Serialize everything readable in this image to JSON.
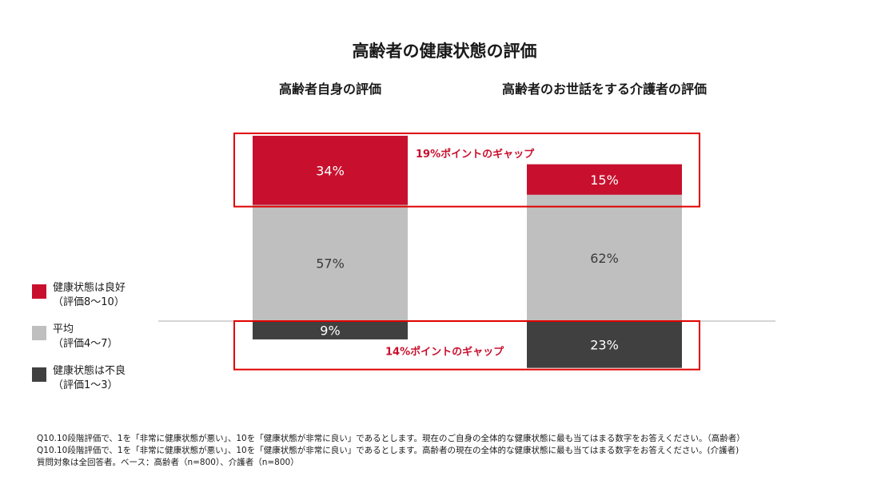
{
  "chart_data": {
    "type": "bar",
    "stacked": true,
    "title": "高齢者の健康状態の評価",
    "categories": [
      "高齢者自身の評価",
      "高齢者のお世話をする介護者の評価"
    ],
    "baseline": "bottom segment hangs below the divider line",
    "series": [
      {
        "name": "健康状態は良好",
        "sublabel": "（評価8～10）",
        "color": "#c8102e",
        "values": [
          34,
          15
        ],
        "labels": [
          "34%",
          "15%"
        ]
      },
      {
        "name": "平均",
        "sublabel": "（評価4～7）",
        "color": "#bfbfbf",
        "values": [
          57,
          62
        ],
        "labels": [
          "57%",
          "62%"
        ]
      },
      {
        "name": "健康状態は不良",
        "sublabel": "（評価1～3）",
        "color": "#404040",
        "values": [
          9,
          23
        ],
        "labels": [
          "9%",
          "23%"
        ]
      }
    ],
    "annotations": [
      {
        "text": "19%ポイントのギャップ",
        "target": "健康状態は良好"
      },
      {
        "text": "14%ポイントのギャップ",
        "target": "健康状態は不良"
      }
    ]
  },
  "notes": [
    "Q10.10段階評価で、1を「非常に健康状態が悪い」、10を「健康状態が非常に良い」であるとします。現在のご自身の全体的な健康状態に最も当てはまる数字をお答えください。（高齢者）",
    "Q10.10段階評価で、1を「非常に健康状態が悪い」、10を「健康状態が非常に良い」であるとします。高齢者の現在の全体的な健康状態に最も当てはまる数字をお答えください。(介護者)",
    "質問対象は全回答者。ベース：高齢者（n=800）、介護者（n=800）"
  ]
}
